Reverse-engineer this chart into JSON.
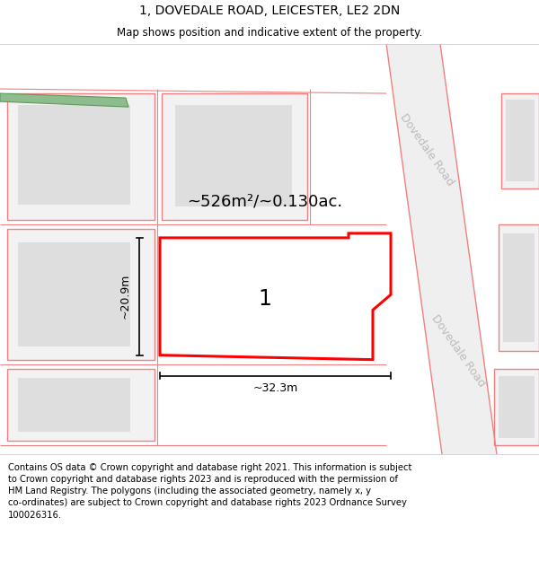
{
  "title": "1, DOVEDALE ROAD, LEICESTER, LE2 2DN",
  "subtitle": "Map shows position and indicative extent of the property.",
  "footer": "Contains OS data © Crown copyright and database right 2021. This information is subject\nto Crown copyright and database rights 2023 and is reproduced with the permission of\nHM Land Registry. The polygons (including the associated geometry, namely x, y\nco-ordinates) are subject to Crown copyright and database rights 2023 Ordnance Survey\n100026316.",
  "area_text": "~526m²/~0.130ac.",
  "label_1": "1",
  "dim_width": "~32.3m",
  "dim_height": "~20.9m",
  "road_label_top": "Dovedale Road",
  "road_label_bottom": "Dovedale Road",
  "bg_color": "#ffffff",
  "plot_outline_color": "#ff0000",
  "neighbor_outline_color": "#f08080",
  "neighbor_fill_color": "#f2f2f2",
  "inner_box_color": "#dedede",
  "green_color": "#8fbc8f",
  "green_edge_color": "#5a9a5a",
  "road_fill_color": "#efefef",
  "road_line_color": "#f08080",
  "title_fontsize": 10,
  "subtitle_fontsize": 8.5,
  "footer_fontsize": 7.2,
  "area_fontsize": 13,
  "label_fontsize": 17,
  "dim_fontsize": 9,
  "road_label_fontsize": 9,
  "road_label_color": "#bbbbbb"
}
